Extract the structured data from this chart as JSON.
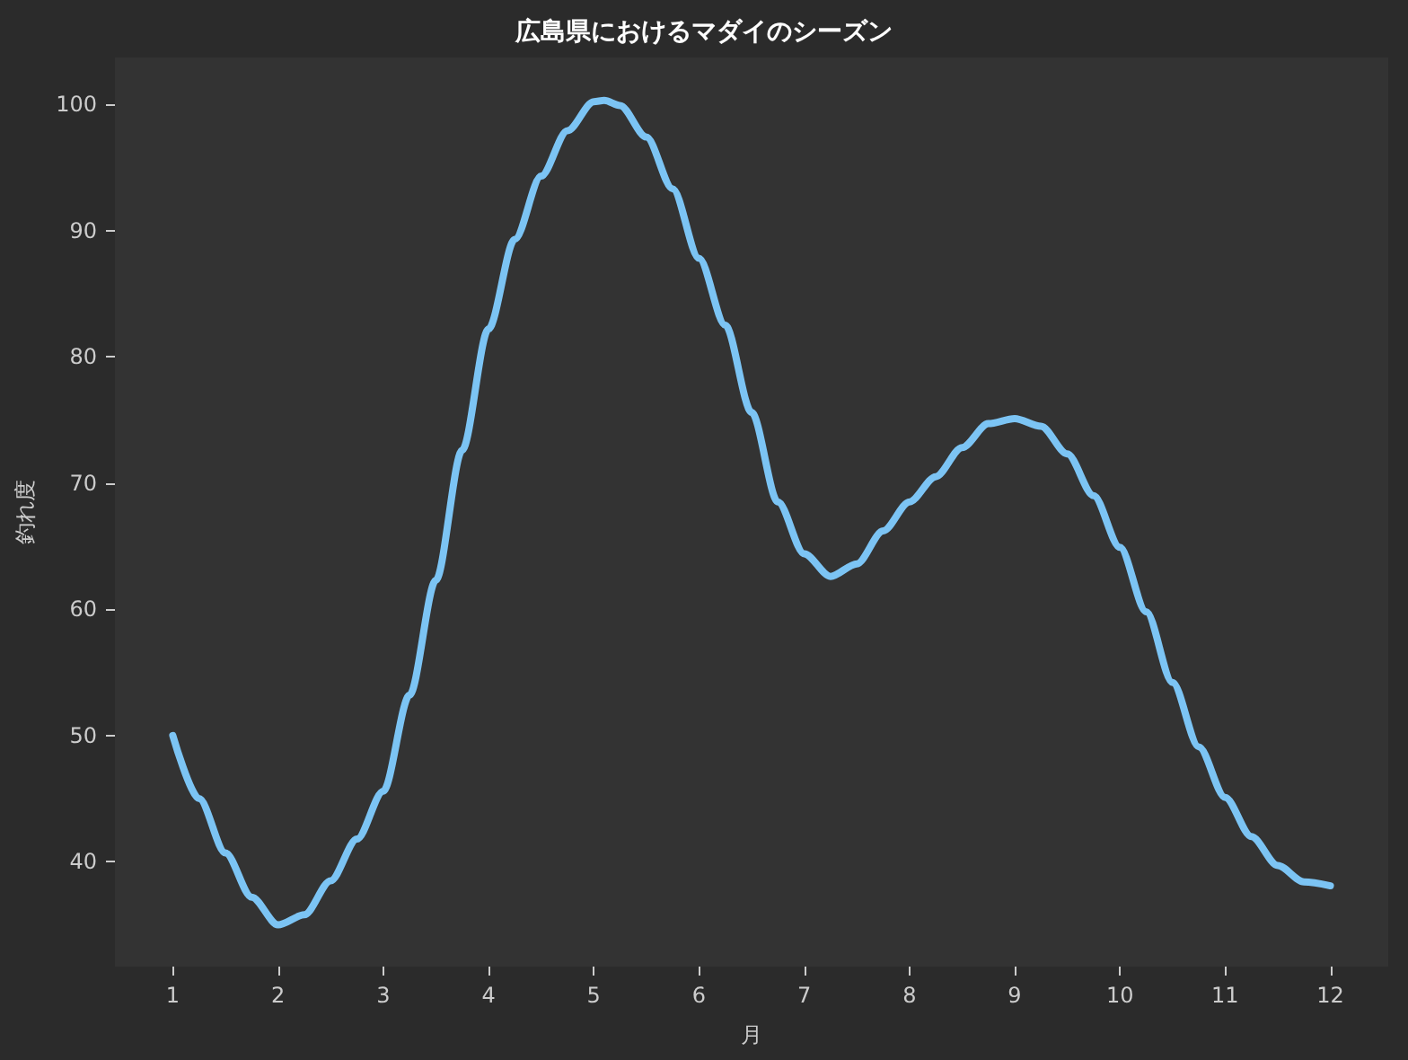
{
  "chart_data": {
    "type": "line",
    "title": "広島県におけるマダイのシーズン",
    "xlabel": "月",
    "ylabel": "釣れ度",
    "x": [
      1,
      1.25,
      1.5,
      1.75,
      2,
      2.25,
      2.5,
      2.75,
      3,
      3.25,
      3.5,
      3.75,
      4,
      4.25,
      4.5,
      4.75,
      5,
      5.1,
      5.25,
      5.5,
      5.75,
      6,
      6.25,
      6.5,
      6.75,
      7,
      7.25,
      7.5,
      7.75,
      8,
      8.25,
      8.5,
      8.75,
      9,
      9.25,
      9.5,
      9.75,
      10,
      10.25,
      10.5,
      10.75,
      11,
      11.25,
      11.5,
      11.75,
      12
    ],
    "series": [
      {
        "color": "#7cc4f4",
        "values": [
          50,
          45,
          40.7,
          37.2,
          35,
          35.8,
          38.5,
          41.8,
          45.6,
          53.2,
          62.3,
          72.6,
          82.2,
          89.3,
          94.3,
          97.9,
          100.2,
          100.3,
          99.9,
          97.4,
          93.3,
          87.8,
          82.5,
          75.6,
          68.5,
          64.4,
          62.6,
          63.6,
          66.2,
          68.5,
          70.5,
          72.8,
          74.7,
          75.1,
          74.5,
          72.3,
          69,
          64.9,
          59.8,
          54.2,
          49.1,
          45.1,
          42,
          39.7,
          38.4,
          38.1
        ]
      }
    ],
    "xlim": [
      0.45,
      12.55
    ],
    "xticks": [
      1,
      2,
      3,
      4,
      5,
      6,
      7,
      8,
      9,
      10,
      11,
      12
    ],
    "ylim": [
      31.7,
      103.7
    ],
    "yticks": [
      40,
      50,
      60,
      70,
      80,
      90,
      100
    ],
    "marker": "none",
    "line_style": "solid"
  }
}
